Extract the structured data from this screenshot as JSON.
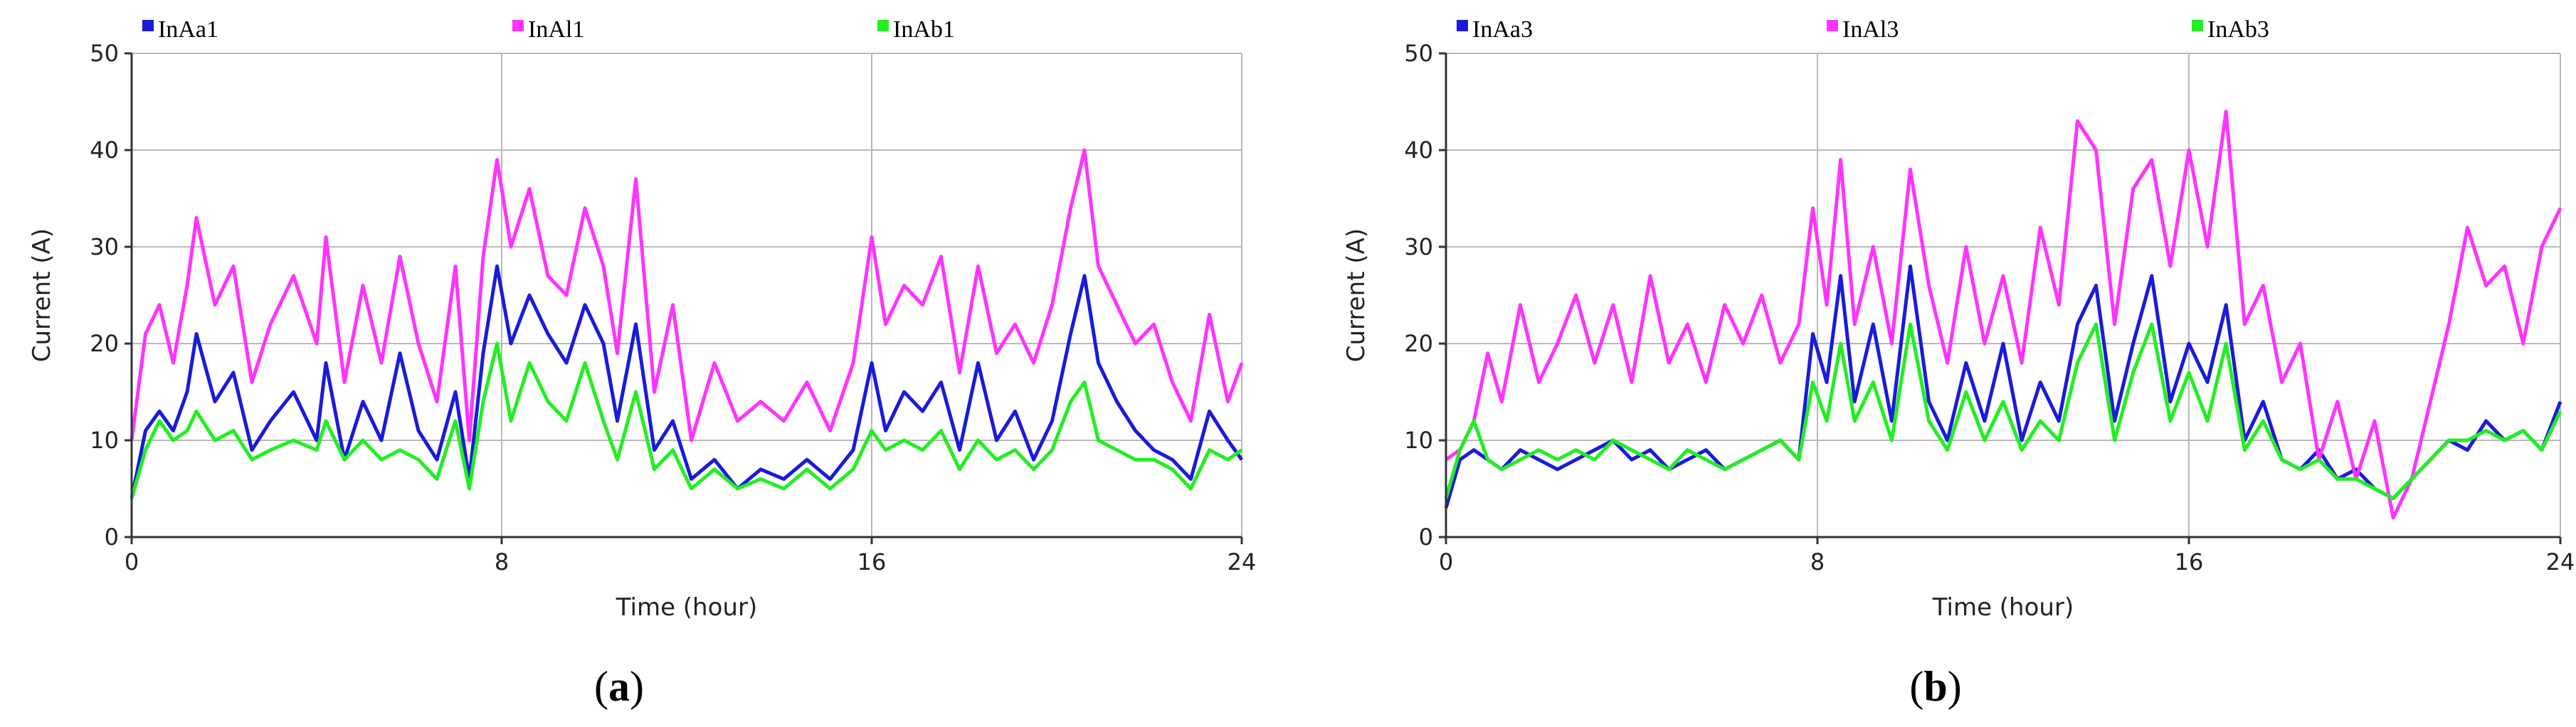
{
  "chart_data": [
    {
      "type": "line",
      "panel_label": "a",
      "xlabel": "Time (hour)",
      "ylabel": "Current (A)",
      "xlim": [
        0,
        24
      ],
      "ylim": [
        0,
        50
      ],
      "x_ticks": [
        0,
        8,
        16,
        24
      ],
      "y_ticks": [
        0,
        10,
        20,
        30,
        40,
        50
      ],
      "grid": true,
      "legend_position": "top",
      "series": [
        {
          "name": "InAa1",
          "color": "#1a1adb",
          "x": [
            0,
            0.3,
            0.6,
            0.9,
            1.2,
            1.4,
            1.8,
            2.2,
            2.6,
            3.0,
            3.5,
            4.0,
            4.2,
            4.6,
            5.0,
            5.4,
            5.8,
            6.2,
            6.6,
            7.0,
            7.3,
            7.6,
            7.9,
            8.2,
            8.6,
            9.0,
            9.4,
            9.8,
            10.2,
            10.5,
            10.9,
            11.3,
            11.7,
            12.1,
            12.6,
            13.1,
            13.6,
            14.1,
            14.6,
            15.1,
            15.6,
            16.0,
            16.3,
            16.7,
            17.1,
            17.5,
            17.9,
            18.3,
            18.7,
            19.1,
            19.5,
            19.9,
            20.3,
            20.6,
            20.9,
            21.3,
            21.7,
            22.1,
            22.5,
            22.9,
            23.3,
            23.7,
            24
          ],
          "values": [
            4,
            11,
            13,
            11,
            15,
            21,
            14,
            17,
            9,
            12,
            15,
            10,
            18,
            8,
            14,
            10,
            19,
            11,
            8,
            15,
            6,
            19,
            28,
            20,
            25,
            21,
            18,
            24,
            20,
            12,
            22,
            9,
            12,
            6,
            8,
            5,
            7,
            6,
            8,
            6,
            9,
            18,
            11,
            15,
            13,
            16,
            9,
            18,
            10,
            13,
            8,
            12,
            21,
            27,
            18,
            14,
            11,
            9,
            8,
            6,
            13,
            10,
            8
          ]
        },
        {
          "name": "InAl1",
          "color": "#ff33ff",
          "x": [
            0,
            0.3,
            0.6,
            0.9,
            1.2,
            1.4,
            1.8,
            2.2,
            2.6,
            3.0,
            3.5,
            4.0,
            4.2,
            4.6,
            5.0,
            5.4,
            5.8,
            6.2,
            6.6,
            7.0,
            7.3,
            7.6,
            7.9,
            8.2,
            8.6,
            9.0,
            9.4,
            9.8,
            10.2,
            10.5,
            10.9,
            11.3,
            11.7,
            12.1,
            12.6,
            13.1,
            13.6,
            14.1,
            14.6,
            15.1,
            15.6,
            16.0,
            16.3,
            16.7,
            17.1,
            17.5,
            17.9,
            18.3,
            18.7,
            19.1,
            19.5,
            19.9,
            20.3,
            20.6,
            20.9,
            21.3,
            21.7,
            22.1,
            22.5,
            22.9,
            23.3,
            23.7,
            24
          ],
          "values": [
            10,
            21,
            24,
            18,
            26,
            33,
            24,
            28,
            16,
            22,
            27,
            20,
            31,
            16,
            26,
            18,
            29,
            20,
            14,
            28,
            10,
            29,
            39,
            30,
            36,
            27,
            25,
            34,
            28,
            19,
            37,
            15,
            24,
            10,
            18,
            12,
            14,
            12,
            16,
            11,
            18,
            31,
            22,
            26,
            24,
            29,
            17,
            28,
            19,
            22,
            18,
            24,
            34,
            40,
            28,
            24,
            20,
            22,
            16,
            12,
            23,
            14,
            18
          ]
        },
        {
          "name": "InAb1",
          "color": "#22ee22",
          "x": [
            0,
            0.3,
            0.6,
            0.9,
            1.2,
            1.4,
            1.8,
            2.2,
            2.6,
            3.0,
            3.5,
            4.0,
            4.2,
            4.6,
            5.0,
            5.4,
            5.8,
            6.2,
            6.6,
            7.0,
            7.3,
            7.6,
            7.9,
            8.2,
            8.6,
            9.0,
            9.4,
            9.8,
            10.2,
            10.5,
            10.9,
            11.3,
            11.7,
            12.1,
            12.6,
            13.1,
            13.6,
            14.1,
            14.6,
            15.1,
            15.6,
            16.0,
            16.3,
            16.7,
            17.1,
            17.5,
            17.9,
            18.3,
            18.7,
            19.1,
            19.5,
            19.9,
            20.3,
            20.6,
            20.9,
            21.3,
            21.7,
            22.1,
            22.5,
            22.9,
            23.3,
            23.7,
            24
          ],
          "values": [
            4,
            9,
            12,
            10,
            11,
            13,
            10,
            11,
            8,
            9,
            10,
            9,
            12,
            8,
            10,
            8,
            9,
            8,
            6,
            12,
            5,
            14,
            20,
            12,
            18,
            14,
            12,
            18,
            12,
            8,
            15,
            7,
            9,
            5,
            7,
            5,
            6,
            5,
            7,
            5,
            7,
            11,
            9,
            10,
            9,
            11,
            7,
            10,
            8,
            9,
            7,
            9,
            14,
            16,
            10,
            9,
            8,
            8,
            7,
            5,
            9,
            8,
            9
          ]
        }
      ]
    },
    {
      "type": "line",
      "panel_label": "b",
      "xlabel": "Time (hour)",
      "ylabel": "Current (A)",
      "xlim": [
        0,
        24
      ],
      "ylim": [
        0,
        50
      ],
      "x_ticks": [
        0,
        8,
        16,
        24
      ],
      "y_ticks": [
        0,
        10,
        20,
        30,
        40,
        50
      ],
      "grid": true,
      "legend_position": "top",
      "series": [
        {
          "name": "InAa3",
          "color": "#1a1adb",
          "x": [
            0,
            0.3,
            0.6,
            0.9,
            1.2,
            1.6,
            2.0,
            2.4,
            2.8,
            3.2,
            3.6,
            4.0,
            4.4,
            4.8,
            5.2,
            5.6,
            6.0,
            6.4,
            6.8,
            7.2,
            7.6,
            7.9,
            8.2,
            8.5,
            8.8,
            9.2,
            9.6,
            10.0,
            10.4,
            10.8,
            11.2,
            11.6,
            12.0,
            12.4,
            12.8,
            13.2,
            13.6,
            14.0,
            14.4,
            14.8,
            15.2,
            15.6,
            16.0,
            16.4,
            16.8,
            17.2,
            17.6,
            18.0,
            18.4,
            18.8,
            19.2,
            19.6,
            20.0,
            20.4,
            20.8,
            21.2,
            21.6,
            22.0,
            22.4,
            22.8,
            23.2,
            23.6,
            24
          ],
          "values": [
            3,
            8,
            9,
            8,
            7,
            9,
            8,
            7,
            8,
            9,
            10,
            8,
            9,
            7,
            8,
            9,
            7,
            8,
            9,
            10,
            8,
            21,
            16,
            27,
            14,
            22,
            12,
            28,
            14,
            10,
            18,
            12,
            20,
            10,
            16,
            12,
            22,
            26,
            12,
            20,
            27,
            14,
            20,
            16,
            24,
            10,
            14,
            8,
            7,
            9,
            6,
            7,
            5,
            4,
            6,
            8,
            10,
            9,
            12,
            10,
            11,
            9,
            14
          ]
        },
        {
          "name": "InAl3",
          "color": "#ff33ff",
          "x": [
            0,
            0.3,
            0.6,
            0.9,
            1.2,
            1.6,
            2.0,
            2.4,
            2.8,
            3.2,
            3.6,
            4.0,
            4.4,
            4.8,
            5.2,
            5.6,
            6.0,
            6.4,
            6.8,
            7.2,
            7.6,
            7.9,
            8.2,
            8.5,
            8.8,
            9.2,
            9.6,
            10.0,
            10.4,
            10.8,
            11.2,
            11.6,
            12.0,
            12.4,
            12.8,
            13.2,
            13.6,
            14.0,
            14.4,
            14.8,
            15.2,
            15.6,
            16.0,
            16.4,
            16.8,
            17.2,
            17.6,
            18.0,
            18.4,
            18.8,
            19.2,
            19.6,
            20.0,
            20.4,
            20.8,
            21.2,
            21.6,
            22.0,
            22.4,
            22.8,
            23.2,
            23.6,
            24
          ],
          "values": [
            8,
            9,
            12,
            19,
            14,
            24,
            16,
            20,
            25,
            18,
            24,
            16,
            27,
            18,
            22,
            16,
            24,
            20,
            25,
            18,
            22,
            34,
            24,
            39,
            22,
            30,
            20,
            38,
            26,
            18,
            30,
            20,
            27,
            18,
            32,
            24,
            43,
            40,
            22,
            36,
            39,
            28,
            40,
            30,
            44,
            22,
            26,
            16,
            20,
            8,
            14,
            6,
            12,
            2,
            6,
            14,
            22,
            32,
            26,
            28,
            20,
            30,
            34
          ]
        },
        {
          "name": "InAb3",
          "color": "#22ee22",
          "x": [
            0,
            0.3,
            0.6,
            0.9,
            1.2,
            1.6,
            2.0,
            2.4,
            2.8,
            3.2,
            3.6,
            4.0,
            4.4,
            4.8,
            5.2,
            5.6,
            6.0,
            6.4,
            6.8,
            7.2,
            7.6,
            7.9,
            8.2,
            8.5,
            8.8,
            9.2,
            9.6,
            10.0,
            10.4,
            10.8,
            11.2,
            11.6,
            12.0,
            12.4,
            12.8,
            13.2,
            13.6,
            14.0,
            14.4,
            14.8,
            15.2,
            15.6,
            16.0,
            16.4,
            16.8,
            17.2,
            17.6,
            18.0,
            18.4,
            18.8,
            19.2,
            19.6,
            20.0,
            20.4,
            20.8,
            21.2,
            21.6,
            22.0,
            22.4,
            22.8,
            23.2,
            23.6,
            24
          ],
          "values": [
            4,
            9,
            12,
            8,
            7,
            8,
            9,
            8,
            9,
            8,
            10,
            9,
            8,
            7,
            9,
            8,
            7,
            8,
            9,
            10,
            8,
            16,
            12,
            20,
            12,
            16,
            10,
            22,
            12,
            9,
            15,
            10,
            14,
            9,
            12,
            10,
            18,
            22,
            10,
            17,
            22,
            12,
            17,
            12,
            20,
            9,
            12,
            8,
            7,
            8,
            6,
            6,
            5,
            4,
            6,
            8,
            10,
            10,
            11,
            10,
            11,
            9,
            13
          ]
        }
      ]
    }
  ]
}
